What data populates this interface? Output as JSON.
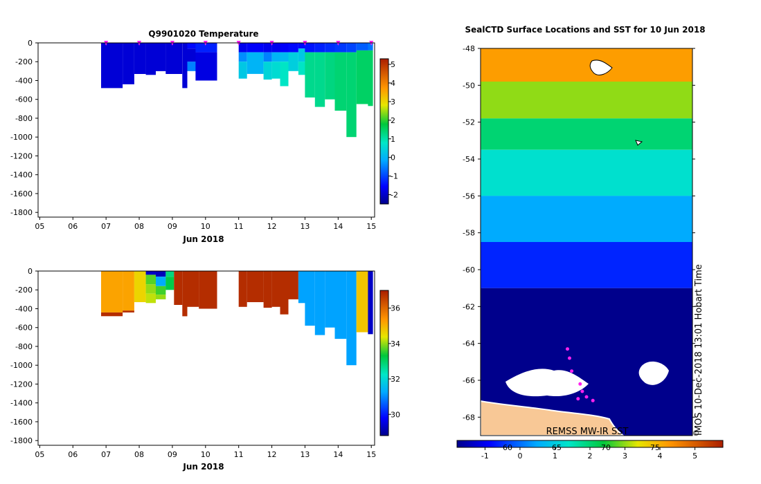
{
  "chart_data": [
    {
      "type": "heatmap",
      "title": "Q9901020  Temperature",
      "xlabel": "Jun 2018",
      "x_ticks": [
        "05",
        "06",
        "07",
        "08",
        "09",
        "10",
        "11",
        "12",
        "13",
        "14",
        "15"
      ],
      "y_ticks": [
        "0",
        "-200",
        "-400",
        "-600",
        "-800",
        "-1000",
        "-1200",
        "-1400",
        "-1600",
        "-1800"
      ],
      "ylim": [
        -1850,
        0
      ],
      "colorbar": {
        "ticks": [
          "5",
          "4",
          "3",
          "2",
          "1",
          "0",
          "-1",
          "-2"
        ],
        "range": [
          -2.5,
          5.3
        ]
      },
      "profile_markers_day": [
        7.0,
        8.0,
        9.0,
        10.0,
        11.0,
        12.0,
        13.0,
        14.0,
        15.0
      ],
      "profiles": [
        {
          "x0": 6.85,
          "x1": 7.5,
          "depth": 480,
          "bands": [
            [
              0,
              480,
              -1.9
            ]
          ]
        },
        {
          "x0": 7.5,
          "x1": 7.85,
          "depth": 440,
          "bands": [
            [
              0,
              440,
              -1.9
            ]
          ]
        },
        {
          "x0": 7.85,
          "x1": 8.2,
          "depth": 330,
          "bands": [
            [
              0,
              330,
              -1.9
            ]
          ]
        },
        {
          "x0": 8.2,
          "x1": 8.5,
          "depth": 340,
          "bands": [
            [
              0,
              340,
              -1.9
            ]
          ]
        },
        {
          "x0": 8.5,
          "x1": 8.8,
          "depth": 300,
          "bands": [
            [
              0,
              300,
              -1.9
            ]
          ]
        },
        {
          "x0": 8.8,
          "x1": 9.3,
          "depth": 330,
          "bands": [
            [
              0,
              330,
              -1.9
            ]
          ]
        },
        {
          "x0": 9.3,
          "x1": 9.45,
          "depth": 480,
          "bands": [
            [
              0,
              480,
              -1.9
            ]
          ]
        },
        {
          "x0": 9.45,
          "x1": 9.7,
          "depth": 300,
          "bands": [
            [
              0,
              60,
              -1.5
            ],
            [
              60,
              200,
              -1.9
            ],
            [
              200,
              300,
              -0.5
            ]
          ]
        },
        {
          "x0": 9.7,
          "x1": 10.35,
          "depth": 400,
          "bands": [
            [
              0,
              100,
              -1.3
            ],
            [
              100,
              400,
              -1.8
            ]
          ]
        },
        {
          "x0": 11.0,
          "x1": 11.25,
          "depth": 380,
          "bands": [
            [
              0,
              100,
              -1.7
            ],
            [
              100,
              200,
              -0.4
            ],
            [
              200,
              380,
              0.3
            ]
          ]
        },
        {
          "x0": 11.25,
          "x1": 11.75,
          "depth": 330,
          "bands": [
            [
              0,
              100,
              -1.6
            ],
            [
              100,
              330,
              0.0
            ]
          ]
        },
        {
          "x0": 11.75,
          "x1": 12.0,
          "depth": 390,
          "bands": [
            [
              0,
              100,
              -1.7
            ],
            [
              100,
              200,
              -0.5
            ],
            [
              200,
              390,
              0.5
            ]
          ]
        },
        {
          "x0": 12.0,
          "x1": 12.25,
          "depth": 380,
          "bands": [
            [
              0,
              100,
              -1.7
            ],
            [
              100,
              200,
              0.0
            ],
            [
              200,
              380,
              0.6
            ]
          ]
        },
        {
          "x0": 12.25,
          "x1": 12.5,
          "depth": 460,
          "bands": [
            [
              0,
              100,
              -1.6
            ],
            [
              100,
              200,
              0.1
            ],
            [
              200,
              460,
              0.8
            ]
          ]
        },
        {
          "x0": 12.5,
          "x1": 12.8,
          "depth": 300,
          "bands": [
            [
              0,
              100,
              -1.5
            ],
            [
              100,
              300,
              0.4
            ]
          ]
        },
        {
          "x0": 12.8,
          "x1": 13.0,
          "depth": 340,
          "bands": [
            [
              0,
              60,
              -1.5
            ],
            [
              60,
              200,
              0.3
            ],
            [
              200,
              340,
              0.8
            ]
          ]
        },
        {
          "x0": 13.0,
          "x1": 13.3,
          "depth": 580,
          "bands": [
            [
              0,
              100,
              -1.4
            ],
            [
              100,
              580,
              1.2
            ]
          ]
        },
        {
          "x0": 13.3,
          "x1": 13.6,
          "depth": 680,
          "bands": [
            [
              0,
              100,
              -1.3
            ],
            [
              100,
              680,
              1.2
            ]
          ]
        },
        {
          "x0": 13.6,
          "x1": 13.9,
          "depth": 600,
          "bands": [
            [
              0,
              100,
              -1.2
            ],
            [
              100,
              600,
              1.3
            ]
          ]
        },
        {
          "x0": 13.9,
          "x1": 14.25,
          "depth": 720,
          "bands": [
            [
              0,
              100,
              -1.1
            ],
            [
              100,
              720,
              1.4
            ]
          ]
        },
        {
          "x0": 14.25,
          "x1": 14.55,
          "depth": 1000,
          "bands": [
            [
              0,
              100,
              -1.0
            ],
            [
              100,
              1000,
              1.4
            ]
          ]
        },
        {
          "x0": 14.55,
          "x1": 14.9,
          "depth": 650,
          "bands": [
            [
              0,
              80,
              -0.8
            ],
            [
              80,
              650,
              1.5
            ]
          ]
        },
        {
          "x0": 14.9,
          "x1": 15.05,
          "depth": 670,
          "bands": [
            [
              0,
              80,
              -0.6
            ],
            [
              80,
              670,
              1.5
            ]
          ]
        }
      ]
    },
    {
      "type": "heatmap",
      "title": "",
      "xlabel": "Jun 2018",
      "x_ticks": [
        "05",
        "06",
        "07",
        "08",
        "09",
        "10",
        "11",
        "12",
        "13",
        "14",
        "15"
      ],
      "y_ticks": [
        "0",
        "-200",
        "-400",
        "-600",
        "-800",
        "-1000",
        "-1200",
        "-1400",
        "-1600",
        "-1800"
      ],
      "ylim": [
        -1850,
        0
      ],
      "colorbar": {
        "ticks": [
          "36",
          "34",
          "32",
          "30"
        ],
        "range": [
          28.8,
          37.0
        ]
      },
      "profiles": [
        {
          "x0": 6.85,
          "x1": 7.5,
          "depth": 480,
          "bands": [
            [
              0,
              440,
              35.2
            ],
            [
              440,
              480,
              36.8
            ]
          ]
        },
        {
          "x0": 7.5,
          "x1": 7.85,
          "depth": 440,
          "bands": [
            [
              0,
              420,
              35.2
            ],
            [
              420,
              440,
              36.8
            ]
          ]
        },
        {
          "x0": 7.85,
          "x1": 8.2,
          "depth": 330,
          "bands": [
            [
              0,
              330,
              34.6
            ]
          ]
        },
        {
          "x0": 8.2,
          "x1": 8.5,
          "depth": 340,
          "bands": [
            [
              0,
              40,
              29.3
            ],
            [
              40,
              140,
              33.7
            ],
            [
              140,
              240,
              34.0
            ],
            [
              240,
              340,
              34.2
            ]
          ]
        },
        {
          "x0": 8.5,
          "x1": 8.8,
          "depth": 300,
          "bands": [
            [
              0,
              60,
              29.2
            ],
            [
              60,
              160,
              31.3
            ],
            [
              160,
              250,
              33.6
            ],
            [
              250,
              300,
              34.0
            ]
          ]
        },
        {
          "x0": 8.8,
          "x1": 9.05,
          "depth": 200,
          "bands": [
            [
              0,
              60,
              32.8
            ],
            [
              60,
              200,
              33.2
            ]
          ]
        },
        {
          "x0": 9.05,
          "x1": 9.3,
          "depth": 360,
          "bands": [
            [
              0,
              360,
              36.8
            ]
          ]
        },
        {
          "x0": 9.3,
          "x1": 9.45,
          "depth": 480,
          "bands": [
            [
              0,
              480,
              36.8
            ]
          ]
        },
        {
          "x0": 9.45,
          "x1": 9.8,
          "depth": 380,
          "bands": [
            [
              0,
              380,
              36.8
            ]
          ]
        },
        {
          "x0": 9.8,
          "x1": 10.35,
          "depth": 400,
          "bands": [
            [
              0,
              400,
              36.8
            ]
          ]
        },
        {
          "x0": 11.0,
          "x1": 11.25,
          "depth": 380,
          "bands": [
            [
              0,
              380,
              36.8
            ]
          ]
        },
        {
          "x0": 11.25,
          "x1": 11.75,
          "depth": 330,
          "bands": [
            [
              0,
              330,
              36.8
            ]
          ]
        },
        {
          "x0": 11.75,
          "x1": 12.0,
          "depth": 390,
          "bands": [
            [
              0,
              390,
              36.8
            ]
          ]
        },
        {
          "x0": 12.0,
          "x1": 12.25,
          "depth": 380,
          "bands": [
            [
              0,
              380,
              36.8
            ]
          ]
        },
        {
          "x0": 12.25,
          "x1": 12.5,
          "depth": 460,
          "bands": [
            [
              0,
              460,
              36.8
            ]
          ]
        },
        {
          "x0": 12.5,
          "x1": 12.8,
          "depth": 300,
          "bands": [
            [
              0,
              300,
              36.8
            ]
          ]
        },
        {
          "x0": 12.8,
          "x1": 13.0,
          "depth": 340,
          "bands": [
            [
              0,
              340,
              31.2
            ]
          ]
        },
        {
          "x0": 13.0,
          "x1": 13.3,
          "depth": 580,
          "bands": [
            [
              0,
              580,
              31.2
            ]
          ]
        },
        {
          "x0": 13.3,
          "x1": 13.6,
          "depth": 680,
          "bands": [
            [
              0,
              680,
              31.2
            ]
          ]
        },
        {
          "x0": 13.6,
          "x1": 13.9,
          "depth": 600,
          "bands": [
            [
              0,
              600,
              31.2
            ]
          ]
        },
        {
          "x0": 13.9,
          "x1": 14.25,
          "depth": 720,
          "bands": [
            [
              0,
              720,
              31.2
            ]
          ]
        },
        {
          "x0": 14.25,
          "x1": 14.55,
          "depth": 1000,
          "bands": [
            [
              0,
              1000,
              31.2
            ]
          ]
        },
        {
          "x0": 14.55,
          "x1": 14.9,
          "depth": 650,
          "bands": [
            [
              0,
              650,
              34.8
            ]
          ]
        },
        {
          "x0": 14.9,
          "x1": 15.05,
          "depth": 670,
          "bands": [
            [
              0,
              670,
              29.3
            ]
          ]
        }
      ]
    },
    {
      "type": "heatmap",
      "title": "SealCTD Surface Locations and SST for 10 Jun 2018",
      "y_ticks": [
        "-48",
        "-50",
        "-52",
        "-54",
        "-56",
        "-58",
        "-60",
        "-62",
        "-64",
        "-66",
        "-68"
      ],
      "ylim": [
        -69,
        -48
      ],
      "colorbar": {
        "ticks": [
          "-1",
          "0",
          "1",
          "2",
          "3",
          "4",
          "5"
        ],
        "secondary_ticks": [
          "60",
          "65",
          "70",
          "75"
        ],
        "range": [
          -1.8,
          5.8
        ]
      },
      "annotations": [
        "REMSS MW-IR SST",
        "IMOS 10-Dec-2018 13:01 Hobart Time",
        "©"
      ],
      "sst_bands": [
        {
          "lat_top": -48.0,
          "lat_bottom": -49.8,
          "sst": 4.2
        },
        {
          "lat_top": -49.8,
          "lat_bottom": -51.8,
          "sst": 3.0
        },
        {
          "lat_top": -51.8,
          "lat_bottom": -53.5,
          "sst": 2.0
        },
        {
          "lat_top": -53.5,
          "lat_bottom": -56.0,
          "sst": 1.3
        },
        {
          "lat_top": -56.0,
          "lat_bottom": -58.5,
          "sst": 0.5
        },
        {
          "lat_top": -58.5,
          "lat_bottom": -61.0,
          "sst": -0.6
        },
        {
          "lat_top": -61.0,
          "lat_bottom": -69.0,
          "sst": -1.8
        }
      ],
      "seal_positions": [
        {
          "frac_x": 0.41,
          "lat": -64.3
        },
        {
          "frac_x": 0.42,
          "lat": -64.8
        },
        {
          "frac_x": 0.43,
          "lat": -65.5
        },
        {
          "frac_x": 0.47,
          "lat": -66.2
        },
        {
          "frac_x": 0.48,
          "lat": -66.6
        },
        {
          "frac_x": 0.46,
          "lat": -67.0
        },
        {
          "frac_x": 0.5,
          "lat": -66.9
        },
        {
          "frac_x": 0.53,
          "lat": -67.1
        }
      ]
    }
  ],
  "colors": {
    "frame": "#000000",
    "land": "#f8c896",
    "ice": "#ffffff",
    "seal_marker": "#ff22ee"
  }
}
